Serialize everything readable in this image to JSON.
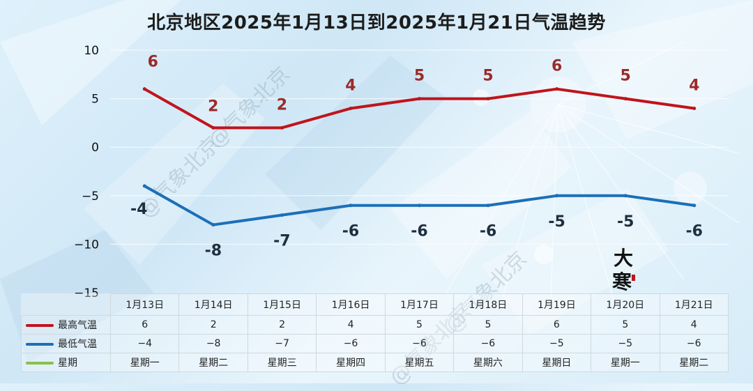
{
  "chart_data": {
    "type": "line",
    "title": "北京地区2025年1月13日到2025年1月21日气温趋势",
    "categories": [
      "1月13日",
      "1月14日",
      "1月15日",
      "1月16日",
      "1月17日",
      "1月18日",
      "1月19日",
      "1月20日",
      "1月21日"
    ],
    "series": [
      {
        "name": "最高气温",
        "values": [
          6,
          2,
          2,
          4,
          5,
          5,
          6,
          5,
          4
        ],
        "color": "#c0141c"
      },
      {
        "name": "最低气温",
        "values": [
          -4,
          -8,
          -7,
          -6,
          -6,
          -6,
          -5,
          -5,
          -6
        ],
        "color": "#1b6fb8"
      }
    ],
    "table_display": {
      "high": [
        "6",
        "2",
        "2",
        "4",
        "5",
        "5",
        "6",
        "5",
        "4"
      ],
      "low": [
        "−4",
        "−8",
        "−7",
        "−6",
        "−6",
        "−6",
        "−5",
        "−5",
        "−6"
      ]
    },
    "weekday_row": {
      "name": "星期",
      "values": [
        "星期一",
        "星期二",
        "星期三",
        "星期四",
        "星期五",
        "星期六",
        "星期日",
        "星期一",
        "星期二"
      ],
      "color": "#8bbf4a"
    },
    "yticks": [
      "10",
      "5",
      "0",
      "−5",
      "−10",
      "−15"
    ],
    "ylim": [
      -15,
      10
    ],
    "grid": true,
    "legend": "table-bottom"
  },
  "decor": {
    "watermark": "@气象北京",
    "seal_text": "大寒"
  }
}
